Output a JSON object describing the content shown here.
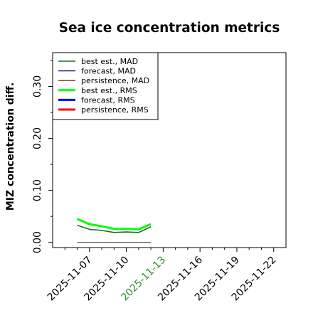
{
  "chart_data": {
    "type": "line",
    "title": "Sea ice concentration metrics",
    "xlabel": "",
    "ylabel": "MIZ concentration diff.",
    "xlim": [
      "2025-11-04",
      "2025-11-23"
    ],
    "ylim": [
      -0.01,
      0.365
    ],
    "yticks": [
      0.0,
      0.1,
      0.2,
      0.3
    ],
    "ytick_labels": [
      "0.00",
      "0.10",
      "0.20",
      "0.30"
    ],
    "xticks": [
      "2025-11-07",
      "2025-11-10",
      "2025-11-13",
      "2025-11-16",
      "2025-11-19",
      "2025-11-22"
    ],
    "xtick_labels": [
      "2025-11-07",
      "2025-11-10",
      "2025-11-13",
      "2025-11-16",
      "2025-11-19",
      "2025-11-22"
    ],
    "highlighted_xtick": "2025-11-13",
    "highlight_color": "#2e8b2e",
    "grid": false,
    "legend_position": "upper-left",
    "series": [
      {
        "name": "best est., MAD",
        "color": "#1f6b1f",
        "linewidth": 1.6,
        "x": [
          "2025-11-06",
          "2025-11-07",
          "2025-11-08",
          "2025-11-09",
          "2025-11-10",
          "2025-11-11",
          "2025-11-12"
        ],
        "values": [
          0.033,
          0.025,
          0.023,
          0.019,
          0.02,
          0.019,
          0.03
        ]
      },
      {
        "name": "forecast,  MAD",
        "color": "#00008b",
        "linewidth": 1.2,
        "x": [],
        "values": []
      },
      {
        "name": "persistence, MAD",
        "color": "#8b0000",
        "linewidth": 1.2,
        "x": [],
        "values": []
      },
      {
        "name": "best est., RMS",
        "color": "#00ff00",
        "linewidth": 3,
        "x": [
          "2025-11-06",
          "2025-11-07",
          "2025-11-08",
          "2025-11-09",
          "2025-11-10",
          "2025-11-11",
          "2025-11-12"
        ],
        "values": [
          0.045,
          0.035,
          0.031,
          0.026,
          0.026,
          0.025,
          0.035
        ]
      },
      {
        "name": "forecast,  RMS",
        "color": "#0000ff",
        "linewidth": 3,
        "x": [],
        "values": []
      },
      {
        "name": "persistence, RMS",
        "color": "#ff0000",
        "linewidth": 3,
        "x": [],
        "values": []
      }
    ],
    "extra_lines": [
      {
        "color": "#444444",
        "linewidth": 1.2,
        "x": [
          "2025-11-06",
          "2025-11-12"
        ],
        "values": [
          0.0,
          0.0
        ]
      }
    ]
  }
}
